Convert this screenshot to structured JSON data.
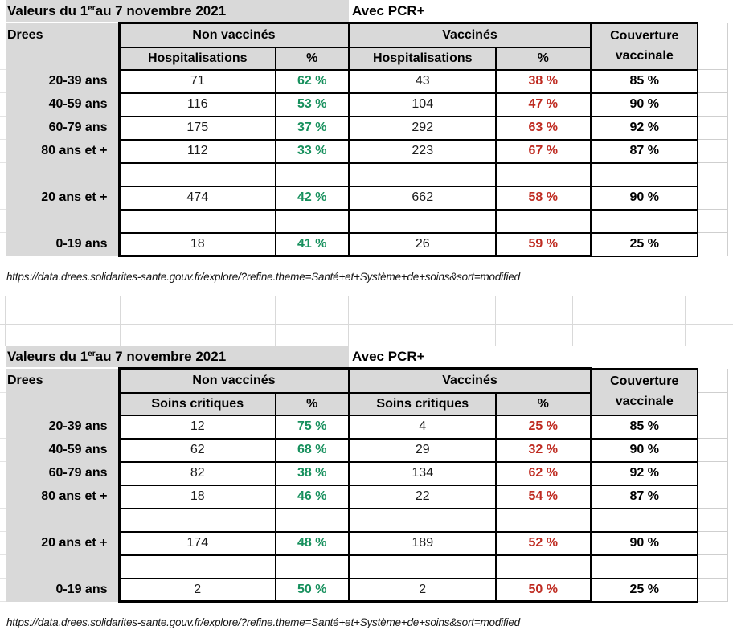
{
  "page": {
    "colors": {
      "header_bg": "#d9d9d9",
      "green_pct": "#17905d",
      "red_pct": "#bf2b21",
      "border": "#000000",
      "gridline": "#d9d9d9"
    }
  },
  "source_url": "https://data.drees.solidarites-sante.gouv.fr/explore/?refine.theme=Santé+et+Système+de+soins&sort=modified",
  "tables": [
    {
      "title": {
        "prefix": "Valeurs du 1",
        "sup": "er",
        "suffix": " au 7 novembre 2021"
      },
      "tag": "Avec PCR+",
      "corner_label": "Drees",
      "group_headers": [
        "Non vaccinés",
        "Vaccinés"
      ],
      "coverage_header": [
        "Couverture",
        "vaccinale"
      ],
      "metric_label": "Hospitalisations",
      "pct_label": "%",
      "rows": [
        {
          "label": "20-39 ans",
          "nv": "71",
          "nv_pct": "62 %",
          "v": "43",
          "v_pct": "38 %",
          "cov": "85 %"
        },
        {
          "label": "40-59 ans",
          "nv": "116",
          "nv_pct": "53 %",
          "v": "104",
          "v_pct": "47 %",
          "cov": "90 %"
        },
        {
          "label": "60-79 ans",
          "nv": "175",
          "nv_pct": "37 %",
          "v": "292",
          "v_pct": "63 %",
          "cov": "92 %"
        },
        {
          "label": "80 ans et +",
          "nv": "112",
          "nv_pct": "33 %",
          "v": "223",
          "v_pct": "67 %",
          "cov": "87 %"
        },
        {
          "label": "",
          "nv": "",
          "nv_pct": "",
          "v": "",
          "v_pct": "",
          "cov": ""
        },
        {
          "label": "20 ans et +",
          "nv": "474",
          "nv_pct": "42 %",
          "v": "662",
          "v_pct": "58 %",
          "cov": "90 %"
        },
        {
          "label": "",
          "nv": "",
          "nv_pct": "",
          "v": "",
          "v_pct": "",
          "cov": ""
        },
        {
          "label": "0-19 ans",
          "nv": "18",
          "nv_pct": "41 %",
          "v": "26",
          "v_pct": "59 %",
          "cov": "25 %"
        }
      ]
    },
    {
      "title": {
        "prefix": "Valeurs du 1",
        "sup": "er",
        "suffix": " au 7 novembre 2021"
      },
      "tag": "Avec PCR+",
      "corner_label": "Drees",
      "group_headers": [
        "Non vaccinés",
        "Vaccinés"
      ],
      "coverage_header": [
        "Couverture",
        "vaccinale"
      ],
      "metric_label": "Soins critiques",
      "pct_label": "%",
      "rows": [
        {
          "label": "20-39 ans",
          "nv": "12",
          "nv_pct": "75 %",
          "v": "4",
          "v_pct": "25 %",
          "cov": "85 %"
        },
        {
          "label": "40-59 ans",
          "nv": "62",
          "nv_pct": "68 %",
          "v": "29",
          "v_pct": "32 %",
          "cov": "90 %"
        },
        {
          "label": "60-79 ans",
          "nv": "82",
          "nv_pct": "38 %",
          "v": "134",
          "v_pct": "62 %",
          "cov": "92 %"
        },
        {
          "label": "80 ans et +",
          "nv": "18",
          "nv_pct": "46 %",
          "v": "22",
          "v_pct": "54 %",
          "cov": "87 %"
        },
        {
          "label": "",
          "nv": "",
          "nv_pct": "",
          "v": "",
          "v_pct": "",
          "cov": ""
        },
        {
          "label": "20 ans et +",
          "nv": "174",
          "nv_pct": "48 %",
          "v": "189",
          "v_pct": "52 %",
          "cov": "90 %"
        },
        {
          "label": "",
          "nv": "",
          "nv_pct": "",
          "v": "",
          "v_pct": "",
          "cov": ""
        },
        {
          "label": "0-19 ans",
          "nv": "2",
          "nv_pct": "50 %",
          "v": "2",
          "v_pct": "50 %",
          "cov": "25 %"
        }
      ]
    }
  ]
}
